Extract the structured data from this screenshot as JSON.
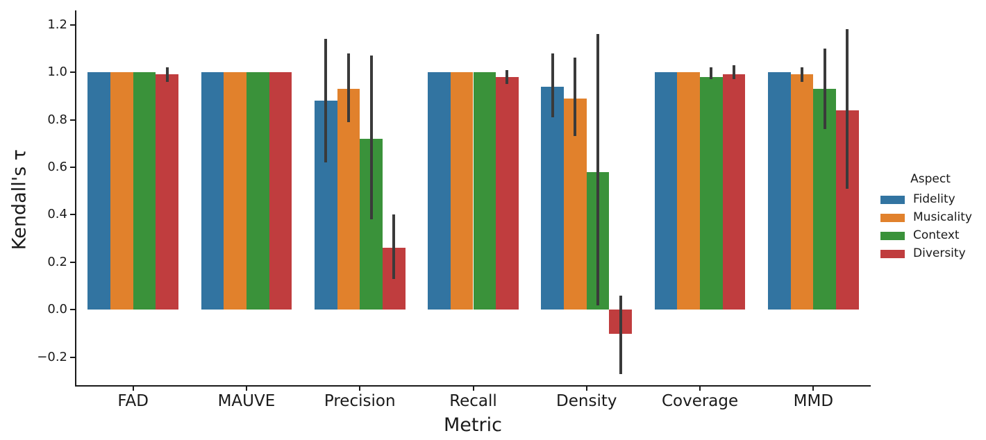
{
  "chart_data": {
    "type": "bar",
    "title": "",
    "xlabel": "Metric",
    "ylabel": "Kendall's τ",
    "categories": [
      "FAD",
      "MAUVE",
      "Precision",
      "Recall",
      "Density",
      "Coverage",
      "MMD"
    ],
    "ylim": [
      -0.32,
      1.26
    ],
    "yticks": [
      1.2,
      1.0,
      0.8,
      0.6,
      0.4,
      0.2,
      0.0,
      -0.2
    ],
    "grid": false,
    "legend_title": "Aspect",
    "legend_position": "right",
    "error_bar_color": "#3a3a3a",
    "axis_color": "#1a1a1a",
    "series": [
      {
        "name": "Fidelity",
        "color": "#3274a1",
        "values": [
          1.0,
          1.0,
          0.88,
          1.0,
          0.94,
          1.0,
          1.0
        ],
        "err_low": [
          null,
          null,
          0.62,
          null,
          0.81,
          null,
          null
        ],
        "err_high": [
          null,
          null,
          1.14,
          null,
          1.08,
          null,
          null
        ]
      },
      {
        "name": "Musicality",
        "color": "#e1812c",
        "values": [
          1.0,
          1.0,
          0.93,
          1.0,
          0.89,
          1.0,
          0.99
        ],
        "err_low": [
          null,
          null,
          0.79,
          null,
          0.73,
          null,
          0.96
        ],
        "err_high": [
          null,
          null,
          1.08,
          null,
          1.06,
          null,
          1.02
        ]
      },
      {
        "name": "Context",
        "color": "#3a923a",
        "values": [
          1.0,
          1.0,
          0.72,
          1.0,
          0.58,
          0.98,
          0.93
        ],
        "err_low": [
          null,
          null,
          0.38,
          null,
          0.02,
          0.97,
          0.76
        ],
        "err_high": [
          null,
          null,
          1.07,
          null,
          1.16,
          1.02,
          1.1
        ]
      },
      {
        "name": "Diversity",
        "color": "#c03d3e",
        "values": [
          0.99,
          1.0,
          0.26,
          0.98,
          -0.1,
          0.99,
          0.84
        ],
        "err_low": [
          0.96,
          null,
          0.13,
          0.95,
          -0.27,
          0.97,
          0.51
        ],
        "err_high": [
          1.02,
          null,
          0.4,
          1.01,
          0.06,
          1.03,
          1.18
        ]
      }
    ]
  }
}
